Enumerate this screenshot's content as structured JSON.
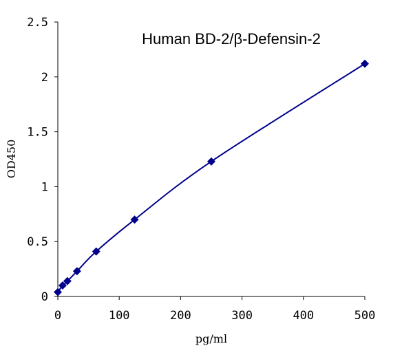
{
  "chart_data": {
    "type": "line",
    "title": "Human BD-2/β-Defensin-2",
    "xlabel": "pg/ml",
    "ylabel": "OD450",
    "xlim": [
      0,
      500
    ],
    "ylim": [
      0,
      2.5
    ],
    "xticks": [
      0,
      100,
      200,
      300,
      400,
      500
    ],
    "xtick_labels": [
      "0",
      "100",
      "200",
      "300",
      "400",
      "500"
    ],
    "yticks": [
      0,
      0.5,
      1,
      1.5,
      2,
      2.5
    ],
    "ytick_labels": [
      "0",
      "0.5",
      "1",
      "1.5",
      "2",
      "2.5"
    ],
    "grid": false,
    "legend": "none",
    "series": [
      {
        "color": "#00008b",
        "marker": "diamond",
        "x": [
          0,
          7.8,
          15.6,
          31.25,
          62.5,
          125,
          250,
          500
        ],
        "y": [
          0.04,
          0.1,
          0.14,
          0.23,
          0.41,
          0.7,
          1.23,
          2.12
        ]
      }
    ]
  }
}
